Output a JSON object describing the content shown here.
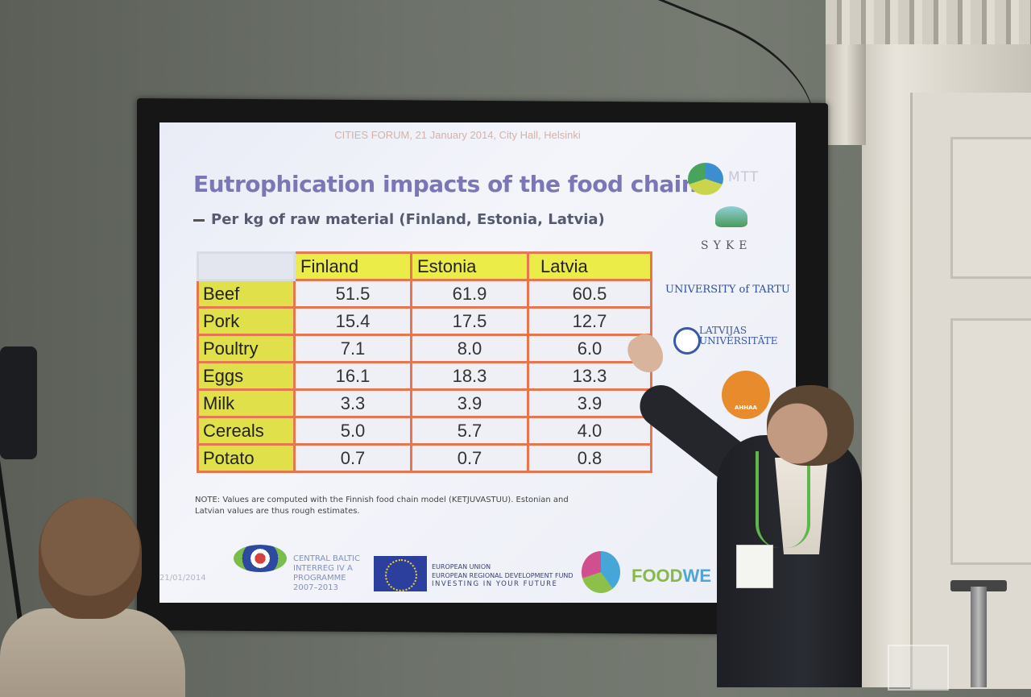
{
  "slide": {
    "conference_header": "CITIES FORUM, 21 January 2014, City Hall, Helsinki",
    "title": "Eutrophication impacts of the food chain",
    "subtitle": "Per kg of raw material (Finland, Estonia, Latvia)",
    "table": {
      "columns": [
        "Finland",
        "Estonia",
        "Latvia"
      ],
      "rows": [
        {
          "label": "Beef",
          "values": [
            "51.5",
            "61.9",
            "60.5"
          ]
        },
        {
          "label": "Pork",
          "values": [
            "15.4",
            "17.5",
            "12.7"
          ]
        },
        {
          "label": "Poultry",
          "values": [
            "7.1",
            "8.0",
            "6.0"
          ]
        },
        {
          "label": "Eggs",
          "values": [
            "16.1",
            "18.3",
            "13.3"
          ]
        },
        {
          "label": "Milk",
          "values": [
            "3.3",
            "3.9",
            "3.9"
          ]
        },
        {
          "label": "Cereals",
          "values": [
            "5.0",
            "5.7",
            "4.0"
          ]
        },
        {
          "label": "Potato",
          "values": [
            "0.7",
            "0.7",
            "0.8"
          ]
        }
      ]
    },
    "note": "NOTE: Values are computed with the Finnish food chain model (KETJUVASTUU). Estonian and Latvian values are thus rough estimates.",
    "date": "21/01/2014",
    "logos": {
      "mtt": "MTT",
      "syke": "SYKE",
      "tartu": "UNIVERSITY of TARTU",
      "latvia_line1": "LATVIJAS",
      "latvia_line2": "UNIVERSITĀTE",
      "ahhaa": "AHHAA",
      "central_baltic_1": "CENTRAL BALTIC",
      "central_baltic_2": "INTERREG IV A",
      "central_baltic_3": "PROGRAMME",
      "central_baltic_4": "2007–2013",
      "eu_1": "EUROPEAN UNION",
      "eu_2": "EUROPEAN REGIONAL DEVELOPMENT FUND",
      "eu_3": "INVESTING IN YOUR FUTURE",
      "foodweb_a": "FOOD",
      "foodweb_b": "WE"
    }
  },
  "colors": {
    "title": "#7b76b8",
    "table_header": "#ecec49",
    "table_border": "#e6764f",
    "foodweb_green": "#86b84a"
  }
}
